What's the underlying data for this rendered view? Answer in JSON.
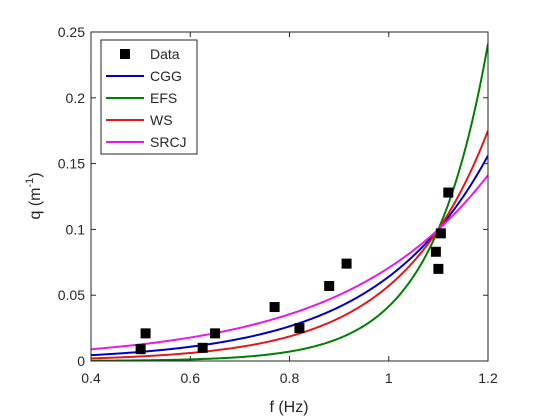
{
  "chart_data": {
    "type": "scatter",
    "title": "",
    "xlabel": "f (Hz)",
    "ylabel_main": "q (m",
    "ylabel_sup": "-1",
    "ylabel_close": ")",
    "xlim": [
      0.4,
      1.2
    ],
    "ylim": [
      0,
      0.25
    ],
    "x_ticks": [
      0.4,
      0.6,
      0.8,
      1.0,
      1.2
    ],
    "x_tick_labels": [
      "0.4",
      "0.6",
      "0.8",
      "1",
      "1.2"
    ],
    "y_ticks": [
      0,
      0.05,
      0.1,
      0.15,
      0.2,
      0.25
    ],
    "y_tick_labels": [
      "0",
      "0.05",
      "0.1",
      "0.15",
      "0.2",
      "0.25"
    ],
    "grid": false,
    "legend_position": "top-left",
    "points": {
      "name": "Data",
      "color": "#000000",
      "x": [
        0.5,
        0.51,
        0.625,
        0.65,
        0.77,
        0.82,
        0.88,
        0.915,
        1.095,
        1.1,
        1.105,
        1.12
      ],
      "y": [
        0.009,
        0.021,
        0.01,
        0.021,
        0.041,
        0.025,
        0.057,
        0.074,
        0.083,
        0.07,
        0.097,
        0.128
      ]
    },
    "series": [
      {
        "name": "CGG",
        "color": "#0000bf",
        "a": 0.1,
        "b": 4.45
      },
      {
        "name": "EFS",
        "color": "#008000",
        "a": 0.1,
        "b": 8.8
      },
      {
        "name": "WS",
        "color": "#e0191a",
        "a": 0.1,
        "b": 5.6
      },
      {
        "name": "SRCJ",
        "color": "#e61ae6",
        "a": 0.1,
        "b": 3.45
      }
    ]
  }
}
